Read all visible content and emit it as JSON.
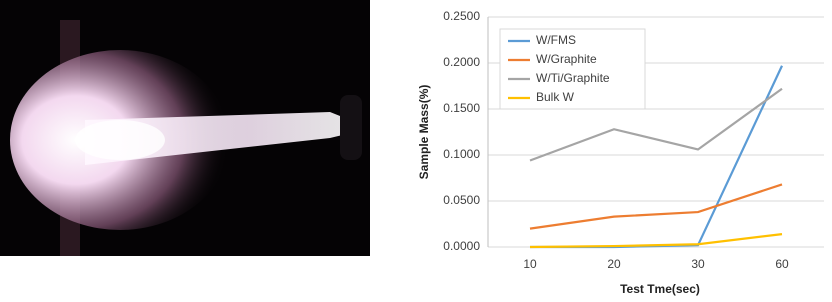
{
  "chart_data": {
    "type": "line",
    "x_label": "Test Tme(sec)",
    "y_label": "Sample Mass(%)",
    "categories": [
      "10",
      "20",
      "30",
      "60"
    ],
    "series": [
      {
        "name": "W/FMS",
        "color": "#5b9bd5",
        "values": [
          0,
          0,
          0.002,
          0.197
        ]
      },
      {
        "name": "W/Graphite",
        "color": "#ed7d31",
        "values": [
          0.02,
          0.033,
          0.038,
          0.068
        ]
      },
      {
        "name": "W/Ti/Graphite",
        "color": "#a5a5a5",
        "values": [
          0.094,
          0.128,
          0.106,
          0.172
        ]
      },
      {
        "name": "Bulk W",
        "color": "#ffc000",
        "values": [
          0,
          0.001,
          0.003,
          0.014
        ]
      }
    ],
    "ylim": [
      0,
      0.25
    ],
    "yticks": [
      {
        "value": 0,
        "label": "0.0000"
      },
      {
        "value": 0.05,
        "label": "0.0500"
      },
      {
        "value": 0.1,
        "label": "0.1000"
      },
      {
        "value": 0.15,
        "label": "0.1500"
      },
      {
        "value": 0.2,
        "label": "0.2000"
      },
      {
        "value": 0.25,
        "label": "0.2500"
      }
    ],
    "grid": true,
    "legend": "upper-left"
  }
}
